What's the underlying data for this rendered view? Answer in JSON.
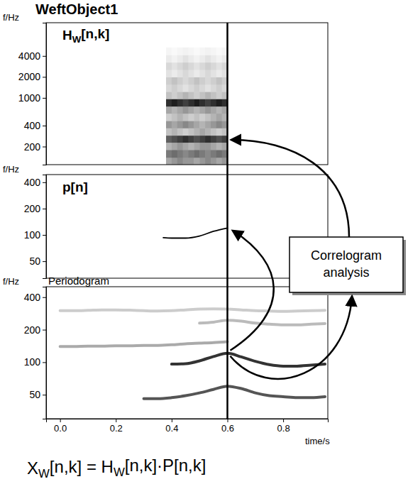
{
  "title": "WeftObject1",
  "current_time": 0.6,
  "annotation": "Correlogram analysis",
  "equation": [
    {
      "text": "X"
    },
    {
      "sub": "W"
    },
    {
      "text": "[n,k] = H"
    },
    {
      "sub": "W"
    },
    {
      "text": "[n,k]·P[n,k]"
    }
  ],
  "chart_data": [
    {
      "type": "heatmap",
      "title": [
        {
          "text": "H"
        },
        {
          "sub": "W"
        },
        {
          "text": "[n,k]"
        }
      ],
      "ylabel": "f/Hz",
      "log": "y",
      "tick_labels": "y",
      "xlim": [
        -0.05,
        0.96
      ],
      "ylim": [
        110,
        12000
      ],
      "yticks": [
        200,
        400,
        1000,
        2000,
        4000
      ],
      "x_edges": [
        0.38,
        0.4,
        0.42,
        0.44,
        0.46,
        0.48,
        0.5,
        0.52,
        0.54,
        0.56,
        0.58,
        0.6
      ],
      "y_edges": [
        110,
        140,
        180,
        230,
        290,
        370,
        470,
        600,
        760,
        970,
        1230,
        1570,
        2000,
        2550,
        3250,
        4150,
        5300
      ],
      "cells": [
        [
          0.45,
          0.5,
          0.55,
          0.5,
          0.5,
          0.45,
          0.5,
          0.55,
          0.5,
          0.45,
          0.5
        ],
        [
          0.6,
          0.65,
          0.6,
          0.55,
          0.6,
          0.65,
          0.6,
          0.55,
          0.6,
          0.65,
          0.6
        ],
        [
          0.4,
          0.45,
          0.5,
          0.45,
          0.4,
          0.45,
          0.5,
          0.5,
          0.45,
          0.4,
          0.45
        ],
        [
          0.7,
          0.75,
          0.8,
          0.85,
          0.8,
          0.75,
          0.8,
          0.85,
          0.8,
          0.75,
          0.8
        ],
        [
          0.35,
          0.4,
          0.35,
          0.3,
          0.35,
          0.4,
          0.45,
          0.4,
          0.35,
          0.3,
          0.35
        ],
        [
          0.5,
          0.45,
          0.5,
          0.55,
          0.5,
          0.45,
          0.4,
          0.45,
          0.5,
          0.55,
          0.5
        ],
        [
          0.3,
          0.35,
          0.4,
          0.35,
          0.3,
          0.35,
          0.3,
          0.35,
          0.4,
          0.45,
          0.4
        ],
        [
          0.45,
          0.4,
          0.45,
          0.5,
          0.45,
          0.4,
          0.45,
          0.5,
          0.45,
          0.4,
          0.45
        ],
        [
          0.85,
          0.9,
          0.85,
          0.8,
          0.85,
          0.9,
          0.85,
          0.8,
          0.85,
          0.9,
          0.85
        ],
        [
          0.35,
          0.3,
          0.35,
          0.4,
          0.35,
          0.3,
          0.35,
          0.4,
          0.35,
          0.3,
          0.35
        ],
        [
          0.25,
          0.3,
          0.25,
          0.2,
          0.25,
          0.3,
          0.25,
          0.2,
          0.25,
          0.3,
          0.25
        ],
        [
          0.3,
          0.35,
          0.3,
          0.25,
          0.3,
          0.35,
          0.3,
          0.25,
          0.3,
          0.35,
          0.3
        ],
        [
          0.2,
          0.15,
          0.2,
          0.25,
          0.2,
          0.15,
          0.2,
          0.25,
          0.2,
          0.15,
          0.2
        ],
        [
          0.25,
          0.2,
          0.25,
          0.3,
          0.25,
          0.2,
          0.25,
          0.3,
          0.25,
          0.2,
          0.25
        ],
        [
          0.15,
          0.1,
          0.15,
          0.2,
          0.15,
          0.1,
          0.15,
          0.2,
          0.15,
          0.1,
          0.15
        ],
        [
          0.08,
          0.05,
          0.08,
          0.1,
          0.08,
          0.05,
          0.08,
          0.1,
          0.08,
          0.05,
          0.08
        ]
      ]
    },
    {
      "type": "line",
      "title": [
        {
          "text": "p[n]"
        }
      ],
      "ylabel": "f/Hz",
      "log": "y",
      "tick_labels": "y",
      "xlim": [
        -0.05,
        0.96
      ],
      "ylim": [
        32,
        490
      ],
      "yticks": [
        50,
        100,
        200,
        400
      ],
      "series": [
        {
          "color": "#000000",
          "x": [
            0.37,
            0.4,
            0.45,
            0.5,
            0.55,
            0.6
          ],
          "values": [
            93,
            92,
            92,
            97,
            110,
            120
          ]
        }
      ]
    },
    {
      "type": "line",
      "title": "Periodogram",
      "ylabel": "f/Hz",
      "xlabel": "time/s",
      "log": "y",
      "xlim": [
        -0.05,
        0.96
      ],
      "ylim": [
        30,
        500
      ],
      "xticks": [
        {
          "value": 0,
          "label": "0.0"
        },
        0.2,
        0.4,
        0.6,
        0.8
      ],
      "yticks": [
        50,
        100,
        200,
        400
      ],
      "x": [
        0,
        0.05,
        0.1,
        0.15,
        0.2,
        0.25,
        0.3,
        0.35,
        0.4,
        0.45,
        0.5,
        0.55,
        0.6,
        0.65,
        0.7,
        0.75,
        0.8,
        0.85,
        0.9,
        0.95
      ],
      "series": [
        {
          "color": "#cccccc",
          "values": [
            300,
            300,
            302,
            305,
            305,
            303,
            300,
            298,
            300,
            305,
            310,
            312,
            310,
            305,
            300,
            298,
            296,
            298,
            300,
            302
          ]
        },
        {
          "color": "#bbbbbb",
          "values": [
            null,
            null,
            null,
            null,
            null,
            null,
            null,
            null,
            null,
            null,
            230,
            235,
            245,
            240,
            230,
            225,
            222,
            222,
            225,
            228
          ]
        },
        {
          "color": "#aaaaaa",
          "values": [
            140,
            140,
            141,
            141,
            142,
            142,
            143,
            143,
            145,
            148,
            150,
            152,
            155,
            null,
            null,
            null,
            null,
            null,
            null,
            null
          ]
        },
        {
          "color": "#555555",
          "values": [
            null,
            null,
            null,
            null,
            null,
            null,
            46,
            46,
            47,
            49,
            52,
            56,
            60,
            57,
            52,
            49,
            48,
            47,
            47,
            48
          ]
        },
        {
          "color": "#333333",
          "values": [
            null,
            null,
            null,
            null,
            null,
            null,
            null,
            null,
            96,
            97,
            103,
            113,
            121,
            112,
            102,
            95,
            92,
            92,
            94,
            96
          ]
        }
      ]
    }
  ]
}
